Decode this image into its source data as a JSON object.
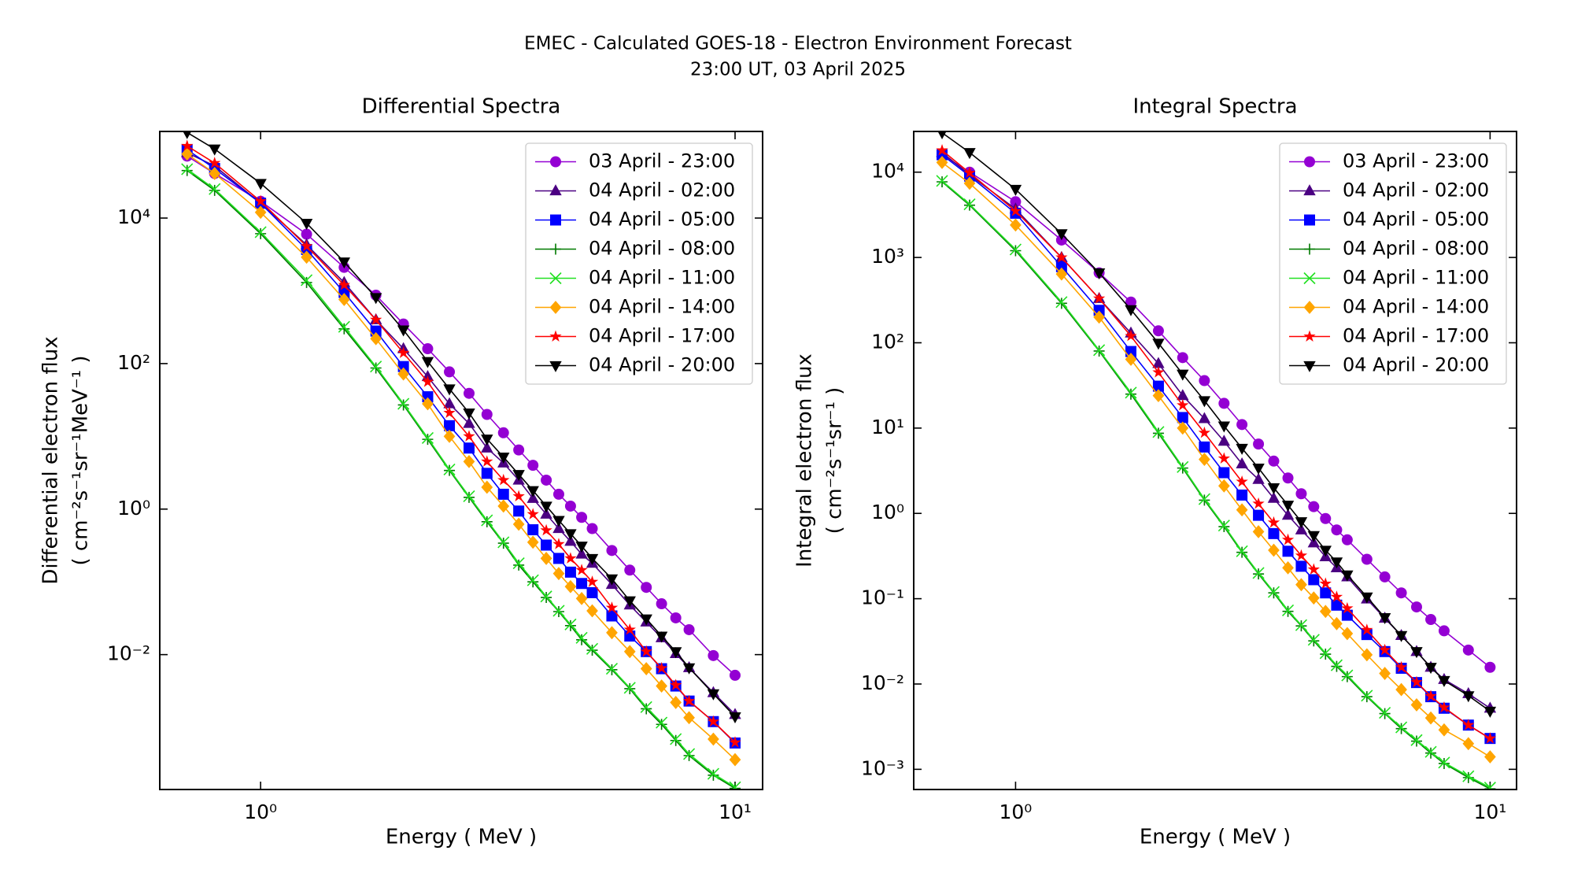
{
  "suptitle": [
    "EMEC - Calculated GOES-18 - Electron Environment Forecast",
    "23:00 UT, 03 April 2025"
  ],
  "chart_data": [
    {
      "type": "line",
      "title": "Differential Spectra",
      "xlabel": "Energy ( MeV )",
      "ylabel": [
        "Differential electron flux",
        "( cm⁻²s⁻¹sr⁻¹MeV⁻¹ )"
      ],
      "xlog": true,
      "ylog": true,
      "legend": "upper right",
      "xlim": [
        0.613,
        11.43
      ],
      "ylim": [
        0.00014,
        155000
      ],
      "xticks": [
        {
          "value": 1,
          "label": "10⁰"
        },
        {
          "value": 10,
          "label": "10¹"
        }
      ],
      "yticks": [
        {
          "value": 0.01,
          "label": "10⁻²"
        },
        {
          "value": 1,
          "label": "10⁰"
        },
        {
          "value": 100,
          "label": "10²"
        },
        {
          "value": 10000,
          "label": "10⁴"
        }
      ],
      "x": [
        0.7,
        0.8,
        1.0,
        1.25,
        1.5,
        1.75,
        2.0,
        2.25,
        2.5,
        2.75,
        3.0,
        3.25,
        3.5,
        3.75,
        4.0,
        4.25,
        4.5,
        4.75,
        5.0,
        5.5,
        6.0,
        6.5,
        7.0,
        7.5,
        8.0,
        9.0,
        10.0
      ],
      "series": [
        {
          "name": "03 April - 23:00",
          "color": "#9400d3",
          "marker": "o",
          "values": [
            71000,
            41000,
            17000,
            6000,
            2100,
            870,
            350,
            160,
            77,
            39,
            20,
            11.2,
            6.5,
            4.0,
            2.5,
            1.6,
            1.1,
            0.77,
            0.54,
            0.27,
            0.145,
            0.084,
            0.05,
            0.032,
            0.022,
            0.0097,
            0.0052
          ]
        },
        {
          "name": "04 April - 02:00",
          "color": "#4b0082",
          "marker": "^",
          "values": [
            79000,
            52000,
            16000,
            4300,
            1300,
            400,
            160,
            66,
            28,
            15,
            6.9,
            4.3,
            2.5,
            1.4,
            0.85,
            0.54,
            0.36,
            0.24,
            0.18,
            0.092,
            0.048,
            0.028,
            0.017,
            0.0103,
            0.0066,
            0.003,
            0.0015
          ]
        },
        {
          "name": "04 April - 05:00",
          "color": "#0000ff",
          "marker": "s",
          "values": [
            87000,
            48000,
            16000,
            3700,
            950,
            280,
            91,
            35,
            14,
            6.9,
            3.1,
            1.6,
            0.94,
            0.52,
            0.32,
            0.21,
            0.136,
            0.095,
            0.071,
            0.034,
            0.018,
            0.011,
            0.0064,
            0.0037,
            0.0023,
            0.0012,
            0.00061
          ]
        },
        {
          "name": "04 April - 08:00",
          "color": "#007a00",
          "marker": "+",
          "values": [
            45000,
            24000,
            6100,
            1300,
            300,
            87,
            27,
            9.1,
            3.4,
            1.45,
            0.67,
            0.34,
            0.17,
            0.1,
            0.061,
            0.039,
            0.025,
            0.016,
            0.0115,
            0.0062,
            0.0034,
            0.0018,
            0.0011,
            0.00066,
            0.00041,
            0.00022,
            0.000145
          ]
        },
        {
          "name": "04 April - 11:00",
          "color": "#22e022",
          "marker": "x",
          "values": [
            47000,
            25000,
            6400,
            1400,
            320,
            91,
            28,
            9.5,
            3.5,
            1.5,
            0.7,
            0.35,
            0.18,
            0.105,
            0.063,
            0.04,
            0.026,
            0.017,
            0.012,
            0.0064,
            0.0035,
            0.0019,
            0.00116,
            0.00069,
            0.00043,
            0.00023,
            0.00015
          ]
        },
        {
          "name": "04 April - 14:00",
          "color": "#ffa500",
          "marker": "D",
          "values": [
            76000,
            41000,
            12000,
            2900,
            760,
            220,
            72,
            28,
            10,
            4.5,
            2.0,
            1.1,
            0.62,
            0.35,
            0.21,
            0.13,
            0.086,
            0.059,
            0.04,
            0.02,
            0.011,
            0.0064,
            0.0037,
            0.0022,
            0.00136,
            0.00069,
            0.00036
          ]
        },
        {
          "name": "04 April - 17:00",
          "color": "#ff0000",
          "marker": "*",
          "values": [
            98000,
            57000,
            17000,
            4100,
            1200,
            400,
            140,
            56,
            21,
            10,
            4.5,
            2.5,
            1.5,
            0.85,
            0.51,
            0.33,
            0.21,
            0.145,
            0.1,
            0.044,
            0.022,
            0.011,
            0.0065,
            0.0038,
            0.0023,
            0.0012,
            0.00062
          ]
        },
        {
          "name": "04 April - 20:00",
          "color": "#000000",
          "marker": "v",
          "values": [
            150000,
            89000,
            30000,
            8500,
            2500,
            810,
            290,
            107,
            45,
            21,
            9.2,
            5.2,
            3.0,
            1.8,
            1.1,
            0.7,
            0.46,
            0.31,
            0.21,
            0.11,
            0.055,
            0.031,
            0.018,
            0.011,
            0.0066,
            0.0029,
            0.0014
          ]
        }
      ]
    },
    {
      "type": "line",
      "title": "Integral Spectra",
      "xlabel": "Energy ( MeV )",
      "ylabel": [
        "Integral electron flux",
        "( cm⁻²s⁻¹sr⁻¹ )"
      ],
      "xlog": true,
      "ylog": true,
      "legend": "upper right",
      "xlim": [
        0.61,
        11.37
      ],
      "ylim": [
        0.00058,
        30000
      ],
      "xticks": [
        {
          "value": 1,
          "label": "10⁰"
        },
        {
          "value": 10,
          "label": "10¹"
        }
      ],
      "yticks": [
        {
          "value": 0.001,
          "label": "10⁻³"
        },
        {
          "value": 0.01,
          "label": "10⁻²"
        },
        {
          "value": 0.1,
          "label": "10⁻¹"
        },
        {
          "value": 1,
          "label": "10⁰"
        },
        {
          "value": 10,
          "label": "10¹"
        },
        {
          "value": 100,
          "label": "10²"
        },
        {
          "value": 1000,
          "label": "10³"
        },
        {
          "value": 10000,
          "label": "10⁴"
        }
      ],
      "x": [
        0.7,
        0.8,
        1.0,
        1.25,
        1.5,
        1.75,
        2.0,
        2.25,
        2.5,
        2.75,
        3.0,
        3.25,
        3.5,
        3.75,
        4.0,
        4.25,
        4.5,
        4.75,
        5.0,
        5.5,
        6.0,
        6.5,
        7.0,
        7.5,
        8.0,
        9.0,
        10.0
      ],
      "series": [
        {
          "name": "03 April - 23:00",
          "color": "#9400d3",
          "marker": "o",
          "values": [
            16000,
            10000,
            4500,
            1600,
            660,
            300,
            138,
            67,
            36,
            19.5,
            11,
            6.5,
            4.1,
            2.6,
            1.7,
            1.2,
            0.87,
            0.64,
            0.49,
            0.29,
            0.18,
            0.117,
            0.08,
            0.057,
            0.042,
            0.025,
            0.0157
          ]
        },
        {
          "name": "04 April - 02:00",
          "color": "#4b0082",
          "marker": "^",
          "values": [
            17000,
            9300,
            3700,
            1000,
            330,
            130,
            57,
            24,
            12.9,
            7.0,
            3.8,
            2.5,
            1.5,
            0.95,
            0.64,
            0.45,
            0.31,
            0.23,
            0.18,
            0.099,
            0.059,
            0.037,
            0.024,
            0.0157,
            0.0113,
            0.0077,
            0.0052
          ]
        },
        {
          "name": "04 April - 05:00",
          "color": "#0000ff",
          "marker": "s",
          "values": [
            16000,
            9000,
            3300,
            780,
            240,
            79,
            31,
            13.3,
            6.0,
            3.0,
            1.64,
            0.95,
            0.58,
            0.36,
            0.24,
            0.167,
            0.117,
            0.084,
            0.064,
            0.038,
            0.024,
            0.0153,
            0.0104,
            0.0071,
            0.0052,
            0.0033,
            0.0023
          ]
        },
        {
          "name": "04 April - 08:00",
          "color": "#007a00",
          "marker": "+",
          "values": [
            7700,
            4100,
            1200,
            290,
            80,
            25,
            8.7,
            3.4,
            1.43,
            0.7,
            0.35,
            0.195,
            0.117,
            0.071,
            0.048,
            0.032,
            0.0224,
            0.0161,
            0.0122,
            0.0071,
            0.0045,
            0.003,
            0.00214,
            0.00155,
            0.00117,
            0.0008,
            0.00059
          ]
        },
        {
          "name": "04 April - 11:00",
          "color": "#22e022",
          "marker": "x",
          "values": [
            7900,
            4200,
            1240,
            300,
            82,
            26,
            9.0,
            3.5,
            1.47,
            0.72,
            0.36,
            0.2,
            0.12,
            0.073,
            0.049,
            0.033,
            0.023,
            0.0166,
            0.0126,
            0.0073,
            0.0046,
            0.0031,
            0.0022,
            0.0016,
            0.0012,
            0.00083,
            0.00061
          ]
        },
        {
          "name": "04 April - 14:00",
          "color": "#ffa500",
          "marker": "D",
          "values": [
            13000,
            7400,
            2400,
            640,
            200,
            64,
            24,
            10,
            4.3,
            2.1,
            1.1,
            0.61,
            0.37,
            0.23,
            0.146,
            0.102,
            0.071,
            0.051,
            0.039,
            0.022,
            0.0133,
            0.0086,
            0.0057,
            0.004,
            0.0029,
            0.002,
            0.0014
          ]
        },
        {
          "name": "04 April - 17:00",
          "color": "#ff0000",
          "marker": "*",
          "values": [
            18000,
            9800,
            3500,
            1000,
            330,
            120,
            45,
            18.5,
            8.8,
            4.4,
            2.35,
            1.3,
            0.78,
            0.49,
            0.32,
            0.22,
            0.15,
            0.105,
            0.077,
            0.043,
            0.025,
            0.0157,
            0.0105,
            0.0072,
            0.0053,
            0.0033,
            0.0023
          ]
        },
        {
          "name": "04 April - 20:00",
          "color": "#000000",
          "marker": "v",
          "values": [
            29000,
            17000,
            6300,
            1900,
            660,
            245,
            99,
            43,
            21,
            10.6,
            5.8,
            3.4,
            2.0,
            1.25,
            0.8,
            0.55,
            0.37,
            0.27,
            0.19,
            0.105,
            0.06,
            0.037,
            0.024,
            0.0157,
            0.011,
            0.0073,
            0.0048
          ]
        }
      ]
    }
  ]
}
